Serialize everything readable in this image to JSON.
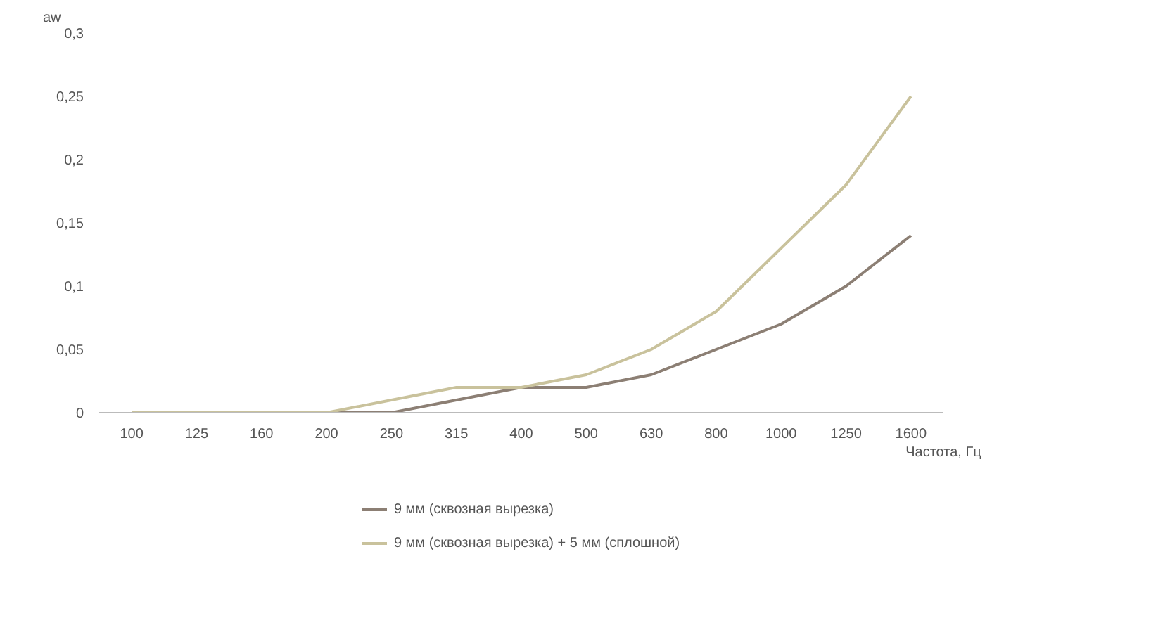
{
  "chart_data": {
    "type": "line",
    "xlabel": "Частота, Гц",
    "ylabel": "aw",
    "categories": [
      "100",
      "125",
      "160",
      "200",
      "250",
      "315",
      "400",
      "500",
      "630",
      "800",
      "1000",
      "1250",
      "1600"
    ],
    "series": [
      {
        "name": "9 мм (сквозная вырезка)",
        "color": "#8c7f74",
        "values": [
          0,
          0,
          0,
          0,
          0,
          0.01,
          0.02,
          0.02,
          0.03,
          0.05,
          0.07,
          0.1,
          0.14
        ]
      },
      {
        "name": "9 мм (сквозная вырезка) + 5 мм (сплошной)",
        "color": "#c9c29c",
        "values": [
          0,
          0,
          0,
          0,
          0.01,
          0.02,
          0.02,
          0.03,
          0.05,
          0.08,
          0.13,
          0.18,
          0.25
        ]
      }
    ],
    "ylim": [
      0,
      0.3
    ],
    "yticks": [
      {
        "value": 0,
        "label": "0"
      },
      {
        "value": 0.05,
        "label": "0,05"
      },
      {
        "value": 0.1,
        "label": "0,1"
      },
      {
        "value": 0.15,
        "label": "0,15"
      },
      {
        "value": 0.2,
        "label": "0,2"
      },
      {
        "value": 0.25,
        "label": "0,25"
      },
      {
        "value": 0.3,
        "label": "0,3"
      }
    ],
    "grid": false,
    "legend": "bottom",
    "marker": "none",
    "line_style": "solid"
  }
}
